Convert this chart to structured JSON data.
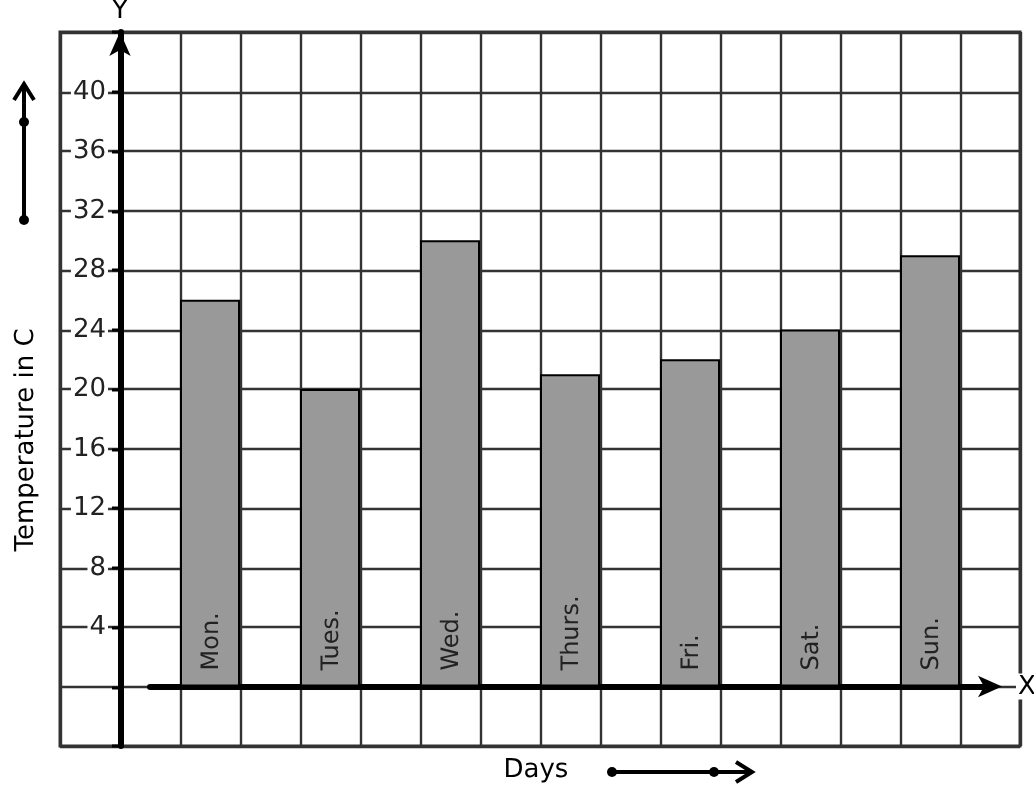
{
  "chart_data": {
    "type": "bar",
    "xlabel": "Days",
    "ylabel": "Temperature in C",
    "annotations": [
      "X",
      "Y"
    ],
    "categories": [
      "Mon.",
      "Tues.",
      "Wed.",
      "Thurs.",
      "Fri.",
      "Sat.",
      "Sun."
    ],
    "values": [
      26,
      20,
      30,
      21,
      22,
      24,
      29
    ],
    "color": "#999999",
    "ylim": [
      -4,
      44
    ],
    "yticks": [
      {
        "value": -4,
        "label": null
      },
      {
        "value": 0,
        "label": null
      },
      4,
      8,
      12,
      16,
      20,
      24,
      28,
      32,
      36,
      40,
      {
        "value": 44,
        "label": null
      }
    ],
    "grid": true
  }
}
